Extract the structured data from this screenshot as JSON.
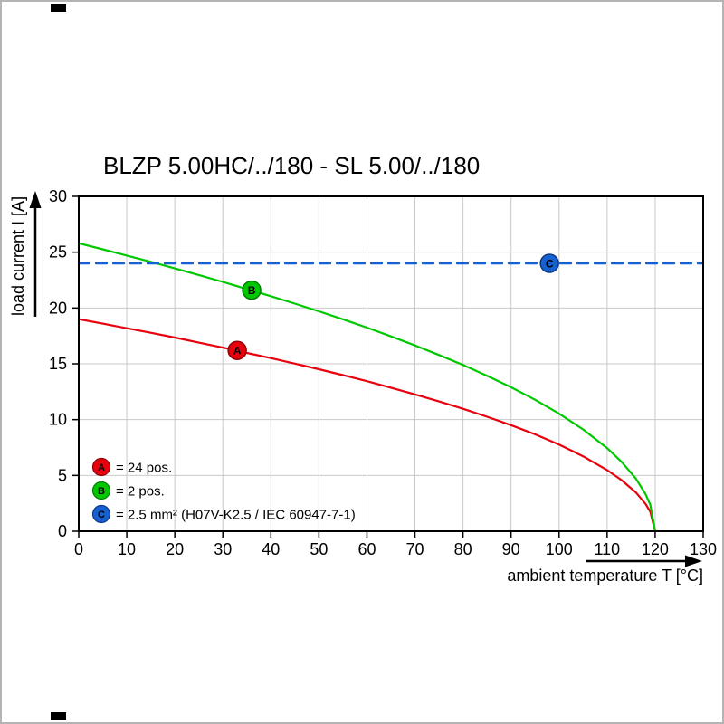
{
  "page": {
    "title": "BLZP 5.00HC/../180 - SL 5.00/../180"
  },
  "chart_data": {
    "type": "line",
    "title": "BLZP 5.00HC/../180 - SL 5.00/../180",
    "xlabel": "ambient temperature T [°C]",
    "ylabel": "load current I [A]",
    "xlim": [
      0,
      130
    ],
    "ylim": [
      0,
      30
    ],
    "xticks": [
      0,
      10,
      20,
      30,
      40,
      50,
      60,
      70,
      80,
      90,
      100,
      110,
      120,
      130
    ],
    "yticks": [
      0,
      5,
      10,
      15,
      20,
      25,
      30
    ],
    "grid": true,
    "grid_color": "#c9c9c9",
    "legend_position": "bottom-left-inside",
    "series": [
      {
        "id": "A",
        "legend_label": "= 24 pos.",
        "color": "#e8000d",
        "marker_ring": "#8f0008",
        "line_style": "solid",
        "marker": {
          "x": 33,
          "y": 16.2
        },
        "points": [
          [
            0,
            19.0
          ],
          [
            5,
            18.6
          ],
          [
            10,
            18.19
          ],
          [
            15,
            17.78
          ],
          [
            20,
            17.35
          ],
          [
            25,
            16.9
          ],
          [
            30,
            16.45
          ],
          [
            35,
            15.97
          ],
          [
            40,
            15.51
          ],
          [
            45,
            15.02
          ],
          [
            50,
            14.51
          ],
          [
            55,
            13.99
          ],
          [
            60,
            13.44
          ],
          [
            65,
            12.86
          ],
          [
            70,
            12.26
          ],
          [
            75,
            11.63
          ],
          [
            80,
            10.97
          ],
          [
            85,
            10.26
          ],
          [
            90,
            9.5
          ],
          [
            95,
            8.68
          ],
          [
            100,
            7.76
          ],
          [
            105,
            6.71
          ],
          [
            110,
            5.48
          ],
          [
            113,
            4.58
          ],
          [
            116,
            3.47
          ],
          [
            118,
            2.45
          ],
          [
            119,
            1.74
          ],
          [
            120,
            0
          ]
        ]
      },
      {
        "id": "B",
        "legend_label": "= 2 pos.",
        "color": "#00c800",
        "marker_ring": "#008000",
        "line_style": "solid",
        "marker": {
          "x": 36,
          "y": 21.6
        },
        "points": [
          [
            0,
            25.8
          ],
          [
            5,
            25.26
          ],
          [
            10,
            24.7
          ],
          [
            15,
            24.14
          ],
          [
            20,
            23.55
          ],
          [
            25,
            22.95
          ],
          [
            30,
            22.34
          ],
          [
            35,
            21.7
          ],
          [
            40,
            21.06
          ],
          [
            45,
            20.39
          ],
          [
            50,
            19.7
          ],
          [
            55,
            18.99
          ],
          [
            60,
            18.24
          ],
          [
            65,
            17.46
          ],
          [
            70,
            16.65
          ],
          [
            75,
            15.79
          ],
          [
            80,
            14.9
          ],
          [
            85,
            13.93
          ],
          [
            90,
            12.9
          ],
          [
            95,
            11.78
          ],
          [
            100,
            10.53
          ],
          [
            105,
            9.12
          ],
          [
            110,
            7.45
          ],
          [
            113,
            6.22
          ],
          [
            116,
            4.71
          ],
          [
            118,
            3.33
          ],
          [
            119,
            2.36
          ],
          [
            120,
            0
          ]
        ]
      },
      {
        "id": "C",
        "legend_label": "= 2.5 mm² (H07V-K2.5 / IEC 60947-7-1)",
        "color": "#1660d2",
        "marker_ring": "#0d3a85",
        "line_style": "dashed",
        "marker": {
          "x": 98,
          "y": 24
        },
        "points": [
          [
            0,
            24
          ],
          [
            130,
            24
          ]
        ]
      }
    ]
  }
}
